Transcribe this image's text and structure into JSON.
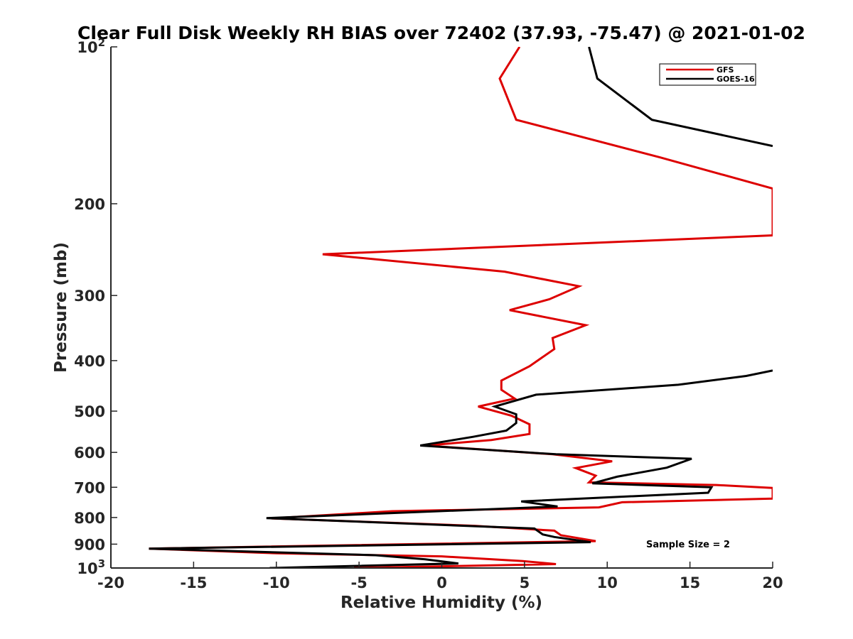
{
  "chart_data": {
    "type": "line",
    "title": "Clear Full Disk Weekly RH BIAS over 72402 (37.93, -75.47) @ 2021-01-02",
    "xlabel": "Relative Humidity (%)",
    "ylabel": "Pressure (mb)",
    "xlim": [
      -20,
      20
    ],
    "ylim": [
      100,
      1000
    ],
    "y_scale": "log",
    "y_reversed": true,
    "x_ticks": [
      -20,
      -15,
      -10,
      -5,
      0,
      5,
      10,
      15,
      20
    ],
    "x_tick_labels": [
      "-20",
      "-15",
      "-10",
      "-5",
      "0",
      "5",
      "10",
      "15",
      "20"
    ],
    "y_ticks": [
      100,
      200,
      300,
      400,
      500,
      600,
      700,
      800,
      900,
      1000
    ],
    "y_tick_labels": [
      {
        "base": "10",
        "exp": "2"
      },
      {
        "base": "200",
        "exp": ""
      },
      {
        "base": "300",
        "exp": ""
      },
      {
        "base": "400",
        "exp": ""
      },
      {
        "base": "500",
        "exp": ""
      },
      {
        "base": "600",
        "exp": ""
      },
      {
        "base": "700",
        "exp": ""
      },
      {
        "base": "800",
        "exp": ""
      },
      {
        "base": "900",
        "exp": ""
      },
      {
        "base": "10",
        "exp": "3"
      }
    ],
    "legend": {
      "position": "top-right",
      "entries": [
        "GFS",
        "GOES-16"
      ]
    },
    "annotation": "Sample Size = 2",
    "series": [
      {
        "name": "GFS",
        "color": "#dd0000",
        "points": [
          [
            4.7,
            100
          ],
          [
            3.5,
            115
          ],
          [
            4.5,
            138
          ],
          [
            13.2,
            163
          ],
          [
            20,
            187
          ],
          [
            20,
            230
          ],
          [
            -7.2,
            250
          ],
          [
            3.8,
            270
          ],
          [
            8.3,
            288
          ],
          [
            6.5,
            305
          ],
          [
            4.1,
            320
          ],
          [
            8.7,
            342
          ],
          [
            6.7,
            362
          ],
          [
            6.8,
            380
          ],
          [
            5.3,
            410
          ],
          [
            3.6,
            437
          ],
          [
            3.6,
            455
          ],
          [
            4.4,
            473
          ],
          [
            2.2,
            490
          ],
          [
            4.2,
            510
          ],
          [
            5.3,
            530
          ],
          [
            5.3,
            553
          ],
          [
            3.0,
            568
          ],
          [
            -1.0,
            582
          ],
          [
            6.7,
            605
          ],
          [
            10.3,
            624
          ],
          [
            8.1,
            643
          ],
          [
            9.3,
            665
          ],
          [
            8.9,
            685
          ],
          [
            16.6,
            693
          ],
          [
            20,
            702
          ],
          [
            20,
            736
          ],
          [
            10.9,
            748
          ],
          [
            9.5,
            765
          ],
          [
            -3.0,
            778
          ],
          [
            -10.3,
            803
          ],
          [
            2.0,
            830
          ],
          [
            6.8,
            848
          ],
          [
            7.2,
            865
          ],
          [
            9.3,
            888
          ],
          [
            -17.7,
            918
          ],
          [
            -10.0,
            937
          ],
          [
            0.0,
            950
          ],
          [
            4.9,
            970
          ],
          [
            6.9,
            983
          ],
          [
            -5.3,
            1000
          ]
        ]
      },
      {
        "name": "GOES-16",
        "color": "#000000",
        "points": [
          [
            8.9,
            100
          ],
          [
            9.4,
            115
          ],
          [
            12.7,
            138
          ],
          [
            20,
            155
          ],
          null,
          [
            20,
            418
          ],
          [
            18.4,
            428
          ],
          [
            14.3,
            445
          ],
          [
            5.7,
            465
          ],
          [
            3.2,
            490
          ],
          [
            4.5,
            507
          ],
          [
            4.5,
            527
          ],
          [
            3.9,
            545
          ],
          [
            1.9,
            560
          ],
          [
            -1.3,
            582
          ],
          [
            6.9,
            605
          ],
          [
            15.1,
            617
          ],
          [
            13.6,
            642
          ],
          [
            10.6,
            668
          ],
          [
            9.1,
            688
          ],
          [
            16.3,
            700
          ],
          [
            16.1,
            717
          ],
          [
            4.8,
            745
          ],
          [
            7.0,
            762
          ],
          [
            -10.6,
            802
          ],
          [
            5.6,
            840
          ],
          [
            6.1,
            862
          ],
          [
            6.8,
            872
          ],
          [
            9.0,
            892
          ],
          [
            -17.7,
            918
          ],
          [
            -4.0,
            945
          ],
          [
            -1.0,
            962
          ],
          [
            1.0,
            980
          ],
          [
            -10.4,
            1000
          ]
        ]
      }
    ]
  }
}
